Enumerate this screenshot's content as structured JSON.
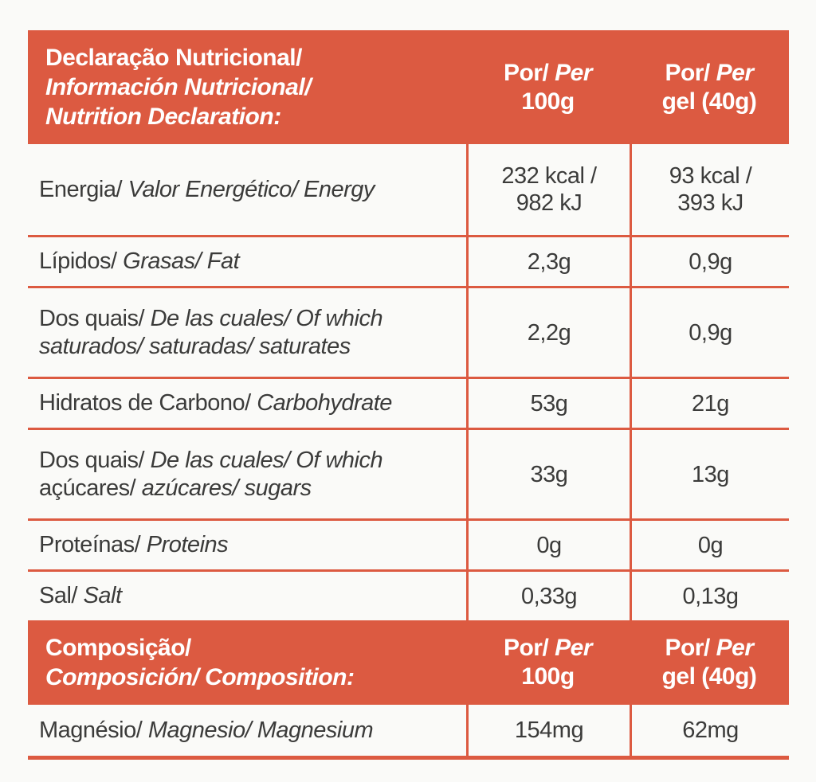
{
  "colors": {
    "accent": "#DC5A41",
    "text": "#3B3B3A",
    "header_text": "#FFFFFF",
    "background": "#FAFAF8"
  },
  "tables": [
    {
      "header": {
        "title": [
          [
            [
              "r",
              "Declaração Nutricional/"
            ]
          ],
          [
            [
              "i",
              "Información Nutricional/"
            ]
          ],
          [
            [
              "i",
              "Nutrition Declaration:"
            ]
          ]
        ],
        "col_100g": [
          [
            [
              "r",
              "Por/ "
            ],
            [
              "i",
              "Per"
            ]
          ],
          [
            [
              "r",
              "100g"
            ]
          ]
        ],
        "col_gel": [
          [
            [
              "r",
              "Por/ "
            ],
            [
              "i",
              "Per"
            ]
          ],
          [
            [
              "r",
              "gel (40g)"
            ]
          ]
        ]
      },
      "rows": [
        {
          "label": [
            [
              [
                "r",
                "Energia/ "
              ],
              [
                "i",
                "Valor Energético/ Energy"
              ]
            ]
          ],
          "per_100g": [
            [
              [
                "r",
                "232 kcal /"
              ]
            ],
            [
              [
                "r",
                "982 kJ"
              ]
            ]
          ],
          "per_gel": [
            [
              [
                "r",
                "93 kcal /"
              ]
            ],
            [
              [
                "r",
                "393 kJ"
              ]
            ]
          ]
        },
        {
          "label": [
            [
              [
                "r",
                "Lípidos/ "
              ],
              [
                "i",
                "Grasas/ Fat"
              ]
            ]
          ],
          "per_100g": [
            [
              [
                "r",
                "2,3g"
              ]
            ]
          ],
          "per_gel": [
            [
              [
                "r",
                "0,9g"
              ]
            ]
          ]
        },
        {
          "label": [
            [
              [
                "r",
                "Dos quais/ "
              ],
              [
                "i",
                "De las cuales/ Of which"
              ]
            ],
            [
              [
                "i",
                "saturados/ saturadas/ saturates"
              ]
            ]
          ],
          "per_100g": [
            [
              [
                "r",
                "2,2g"
              ]
            ]
          ],
          "per_gel": [
            [
              [
                "r",
                "0,9g"
              ]
            ]
          ]
        },
        {
          "label": [
            [
              [
                "r",
                "Hidratos de Carbono/ "
              ],
              [
                "i",
                "Carbohydrate"
              ]
            ]
          ],
          "per_100g": [
            [
              [
                "r",
                "53g"
              ]
            ]
          ],
          "per_gel": [
            [
              [
                "r",
                "21g"
              ]
            ]
          ]
        },
        {
          "label": [
            [
              [
                "r",
                "Dos quais/ "
              ],
              [
                "i",
                "De las cuales/ Of which"
              ]
            ],
            [
              [
                "r",
                "açúcares/ "
              ],
              [
                "i",
                "azúcares/ sugars"
              ]
            ]
          ],
          "per_100g": [
            [
              [
                "r",
                "33g"
              ]
            ]
          ],
          "per_gel": [
            [
              [
                "r",
                "13g"
              ]
            ]
          ]
        },
        {
          "label": [
            [
              [
                "r",
                "Proteínas/ "
              ],
              [
                "i",
                "Proteins"
              ]
            ]
          ],
          "per_100g": [
            [
              [
                "r",
                "0g"
              ]
            ]
          ],
          "per_gel": [
            [
              [
                "r",
                "0g"
              ]
            ]
          ]
        },
        {
          "label": [
            [
              [
                "r",
                "Sal/ "
              ],
              [
                "i",
                "Salt"
              ]
            ]
          ],
          "per_100g": [
            [
              [
                "r",
                "0,33g"
              ]
            ]
          ],
          "per_gel": [
            [
              [
                "r",
                "0,13g"
              ]
            ]
          ]
        }
      ]
    },
    {
      "header": {
        "title": [
          [
            [
              "r",
              "Composição/"
            ]
          ],
          [
            [
              "i",
              "Composición/ Composition:"
            ]
          ]
        ],
        "col_100g": [
          [
            [
              "r",
              "Por/ "
            ],
            [
              "i",
              "Per"
            ]
          ],
          [
            [
              "r",
              "100g"
            ]
          ]
        ],
        "col_gel": [
          [
            [
              "r",
              "Por/ "
            ],
            [
              "i",
              "Per"
            ]
          ],
          [
            [
              "r",
              "gel (40g)"
            ]
          ]
        ]
      },
      "rows": [
        {
          "label": [
            [
              [
                "r",
                "Magnésio/ "
              ],
              [
                "i",
                "Magnesio/ Magnesium"
              ]
            ]
          ],
          "per_100g": [
            [
              [
                "r",
                "154mg"
              ]
            ]
          ],
          "per_gel": [
            [
              [
                "r",
                "62mg"
              ]
            ]
          ]
        }
      ]
    }
  ]
}
